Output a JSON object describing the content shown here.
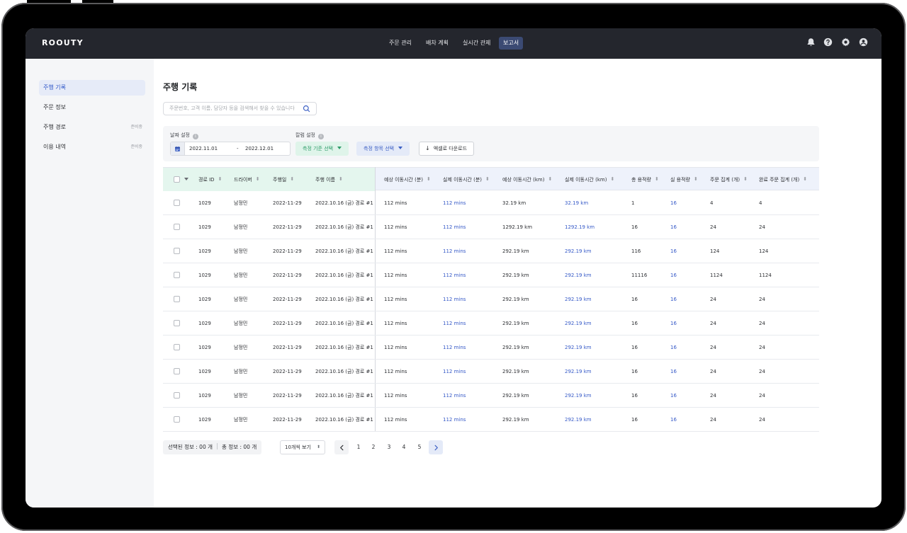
{
  "app": {
    "logo": "ROOUTY"
  },
  "nav": {
    "items": [
      {
        "label": "주문 관리",
        "active": false
      },
      {
        "label": "배차 계획",
        "active": false
      },
      {
        "label": "실시간 관제",
        "active": false
      },
      {
        "label": "보고서",
        "active": true
      }
    ],
    "icons": [
      "bell-icon",
      "help-icon",
      "gear-icon",
      "user-icon"
    ]
  },
  "sidebar": {
    "items": [
      {
        "label": "주행 기록",
        "badge": "",
        "active": true
      },
      {
        "label": "주문 정보",
        "badge": "",
        "active": false
      },
      {
        "label": "주행 경로",
        "badge": "준비중",
        "active": false
      },
      {
        "label": "이용 내역",
        "badge": "준비중",
        "active": false
      }
    ]
  },
  "page": {
    "title": "주행 기록"
  },
  "search": {
    "placeholder": "주문번호, 고객 이름, 담당자 등을 검색해서 찾을 수 있습니다"
  },
  "filters": {
    "date_label": "날짜 설정",
    "date_from": "2022.11.01",
    "date_sep": "-",
    "date_to": "2022.12.01",
    "column_label": "칼럼 설정",
    "info_glyph": "i",
    "criteria_select": "측정 기준 선택",
    "items_select": "측정 항목 선택",
    "excel_button": "엑셀로 다운로드"
  },
  "table": {
    "columns": [
      "경로 ID",
      "드라이버",
      "주행일",
      "주행 이름",
      "예상 이동시간 (분)",
      "실제 이동시간 (분)",
      "예상 이동시간 (km)",
      "실제 이동시간 (km)",
      "총 용적량",
      "실 용적량",
      "주문 집계 (개)",
      "완료 주문 집계 (개)"
    ],
    "rows": [
      [
        "1029",
        "남정민",
        "2022-11-29",
        "2022.10.16 (금) 경로 #1",
        "112 mins",
        "112 mins",
        "32.19 km",
        "32.19 km",
        "1",
        "16",
        "4",
        "4"
      ],
      [
        "1029",
        "남정민",
        "2022-11-29",
        "2022.10.16 (금) 경로 #1",
        "112 mins",
        "112 mins",
        "1292.19 km",
        "1292.19 km",
        "16",
        "16",
        "24",
        "24"
      ],
      [
        "1029",
        "남정민",
        "2022-11-29",
        "2022.10.16 (금) 경로 #1",
        "112 mins",
        "112 mins",
        "292.19 km",
        "292.19 km",
        "116",
        "16",
        "124",
        "124"
      ],
      [
        "1029",
        "남정민",
        "2022-11-29",
        "2022.10.16 (금) 경로 #1",
        "112 mins",
        "112 mins",
        "292.19 km",
        "292.19 km",
        "11116",
        "16",
        "1124",
        "1124"
      ],
      [
        "1029",
        "남정민",
        "2022-11-29",
        "2022.10.16 (금) 경로 #1",
        "112 mins",
        "112 mins",
        "292.19 km",
        "292.19 km",
        "16",
        "16",
        "24",
        "24"
      ],
      [
        "1029",
        "남정민",
        "2022-11-29",
        "2022.10.16 (금) 경로 #1",
        "112 mins",
        "112 mins",
        "292.19 km",
        "292.19 km",
        "16",
        "16",
        "24",
        "24"
      ],
      [
        "1029",
        "남정민",
        "2022-11-29",
        "2022.10.16 (금) 경로 #1",
        "112 mins",
        "112 mins",
        "292.19 km",
        "292.19 km",
        "16",
        "16",
        "24",
        "24"
      ],
      [
        "1029",
        "남정민",
        "2022-11-29",
        "2022.10.16 (금) 경로 #1",
        "112 mins",
        "112 mins",
        "292.19 km",
        "292.19 km",
        "16",
        "16",
        "24",
        "24"
      ],
      [
        "1029",
        "남정민",
        "2022-11-29",
        "2022.10.16 (금) 경로 #1",
        "112 mins",
        "112 mins",
        "292.19 km",
        "292.19 km",
        "16",
        "16",
        "24",
        "24"
      ],
      [
        "1029",
        "남정민",
        "2022-11-29",
        "2022.10.16 (금) 경로 #1",
        "112 mins",
        "112 mins",
        "292.19 km",
        "292.19 km",
        "16",
        "16",
        "24",
        "24"
      ]
    ]
  },
  "footer": {
    "selected_info": "선택된 정보 : 00 개",
    "total_info": "총 정보 : 00 개",
    "per_page": "10개씩 보기",
    "pages": [
      "1",
      "2",
      "3",
      "4",
      "5"
    ]
  },
  "colors": {
    "nav_bg": "#24262d",
    "accent_blue": "#3458c7",
    "accent_green": "#2f9d6a",
    "frozen_header": "#e4f6ee",
    "header_bg": "#eef2fb"
  }
}
